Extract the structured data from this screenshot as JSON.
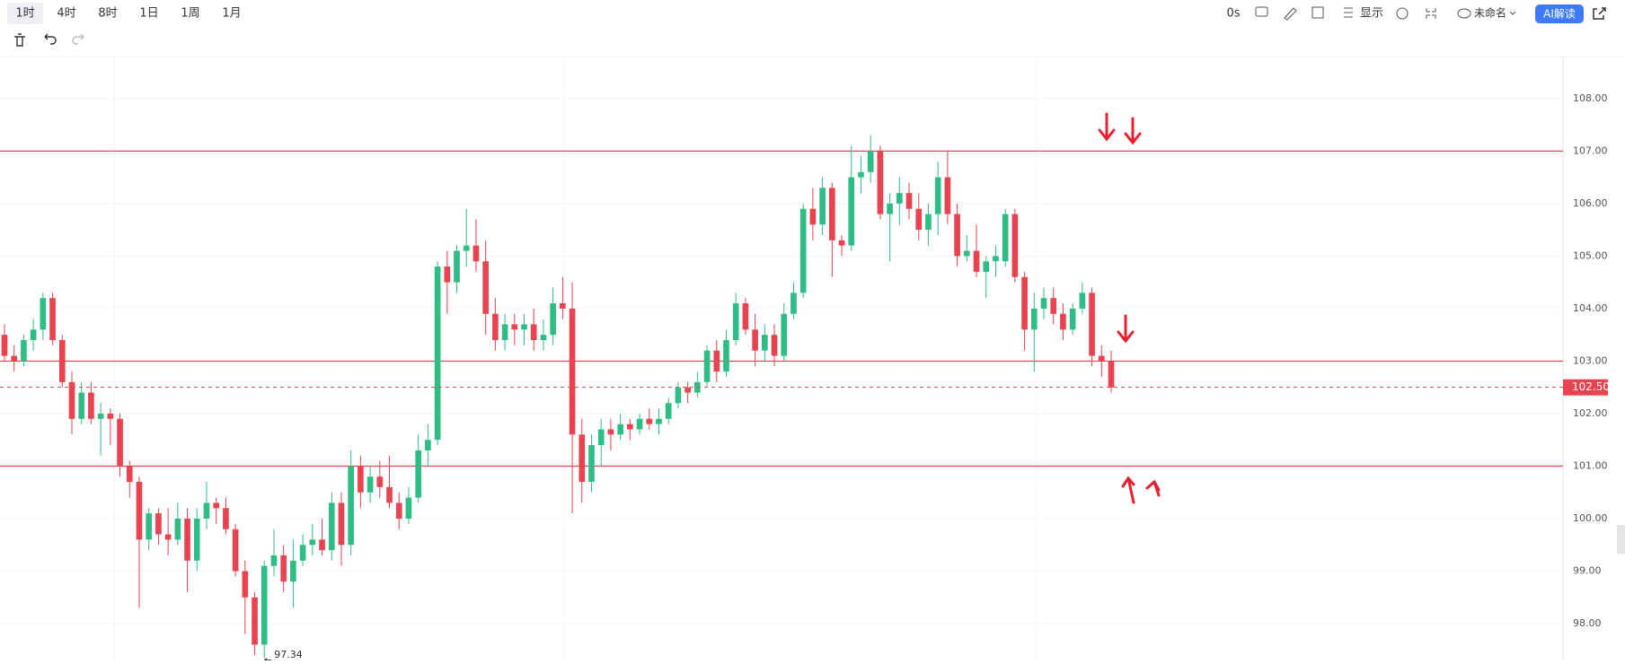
{
  "toolbar": {
    "intervals": [
      "1时",
      "4时",
      "8时",
      "1日",
      "1周",
      "1月"
    ],
    "countdown": "0s",
    "display": "显示",
    "layout_name": "未命名",
    "ai_button": "AI解读"
  },
  "chart_data": {
    "type": "candlestick",
    "up_color": "#2ebd85",
    "down_color": "#e8434f",
    "line_color": "#e8434f",
    "ylim": [
      97.3,
      108.8
    ],
    "yticks": [
      {
        "value": 98,
        "label": "98.00"
      },
      {
        "value": 99,
        "label": "99.00"
      },
      {
        "value": 100,
        "label": "100.00"
      },
      {
        "value": 101,
        "label": "101.00"
      },
      {
        "value": 102,
        "label": "102.00"
      },
      {
        "value": 103,
        "label": "103.00"
      },
      {
        "value": 104,
        "label": "104.00"
      },
      {
        "value": 105,
        "label": "105.00"
      },
      {
        "value": 106,
        "label": "106.00"
      },
      {
        "value": 107,
        "label": "107.00"
      },
      {
        "value": 108,
        "label": "108.00"
      }
    ],
    "grid": true,
    "hlines": [
      107,
      103,
      101
    ],
    "last_price": {
      "value": 102.5,
      "label": "102.50"
    },
    "low_label": {
      "value": 97.34,
      "label": "97.34"
    },
    "candles": [
      [
        103.5,
        103.7,
        103.0,
        103.1
      ],
      [
        103.1,
        103.3,
        102.8,
        103.0
      ],
      [
        103.0,
        103.5,
        102.9,
        103.4
      ],
      [
        103.4,
        103.8,
        103.2,
        103.6
      ],
      [
        103.6,
        104.3,
        103.4,
        104.2
      ],
      [
        104.2,
        104.3,
        103.3,
        103.4
      ],
      [
        103.4,
        103.5,
        102.5,
        102.6
      ],
      [
        102.6,
        102.8,
        101.6,
        101.9
      ],
      [
        101.9,
        102.6,
        101.8,
        102.4
      ],
      [
        102.4,
        102.6,
        101.8,
        101.9
      ],
      [
        101.9,
        102.2,
        101.2,
        102.0
      ],
      [
        102.0,
        102.1,
        101.4,
        101.9
      ],
      [
        101.9,
        102.0,
        100.8,
        101.0
      ],
      [
        101.0,
        101.1,
        100.4,
        100.7
      ],
      [
        100.7,
        100.8,
        98.3,
        99.6
      ],
      [
        99.6,
        100.2,
        99.4,
        100.1
      ],
      [
        100.1,
        100.2,
        99.5,
        99.7
      ],
      [
        99.7,
        100.2,
        99.3,
        99.6
      ],
      [
        99.6,
        100.3,
        99.5,
        100.0
      ],
      [
        100.0,
        100.2,
        98.6,
        99.2
      ],
      [
        99.2,
        100.2,
        99.0,
        100.0
      ],
      [
        100.0,
        100.7,
        99.8,
        100.3
      ],
      [
        100.3,
        100.4,
        99.9,
        100.2
      ],
      [
        100.2,
        100.4,
        99.7,
        99.8
      ],
      [
        99.8,
        99.9,
        98.9,
        99.0
      ],
      [
        99.0,
        99.2,
        97.8,
        98.5
      ],
      [
        98.5,
        98.6,
        97.4,
        97.6
      ],
      [
        97.6,
        99.2,
        97.34,
        99.1
      ],
      [
        99.1,
        99.8,
        98.9,
        99.3
      ],
      [
        99.3,
        99.5,
        98.6,
        98.8
      ],
      [
        98.8,
        99.6,
        98.3,
        99.2
      ],
      [
        99.2,
        99.7,
        99.1,
        99.5
      ],
      [
        99.5,
        99.9,
        99.3,
        99.6
      ],
      [
        99.6,
        100.0,
        99.3,
        99.4
      ],
      [
        99.4,
        100.5,
        99.2,
        100.3
      ],
      [
        100.3,
        100.5,
        99.1,
        99.5
      ],
      [
        99.5,
        101.3,
        99.3,
        101.0
      ],
      [
        101.0,
        101.2,
        100.2,
        100.5
      ],
      [
        100.5,
        101.0,
        100.3,
        100.8
      ],
      [
        100.8,
        101.1,
        100.4,
        100.6
      ],
      [
        100.6,
        101.2,
        100.2,
        100.3
      ],
      [
        100.3,
        100.5,
        99.8,
        100.0
      ],
      [
        100.0,
        100.6,
        99.9,
        100.4
      ],
      [
        100.4,
        101.6,
        100.3,
        101.3
      ],
      [
        101.3,
        101.8,
        101.0,
        101.5
      ],
      [
        101.5,
        104.9,
        101.4,
        104.8
      ],
      [
        104.8,
        105.1,
        103.9,
        104.5
      ],
      [
        104.5,
        105.2,
        104.3,
        105.1
      ],
      [
        105.1,
        105.9,
        104.8,
        105.2
      ],
      [
        105.2,
        105.7,
        104.7,
        104.9
      ],
      [
        104.9,
        105.3,
        103.5,
        103.9
      ],
      [
        103.9,
        104.2,
        103.2,
        103.4
      ],
      [
        103.4,
        103.9,
        103.2,
        103.7
      ],
      [
        103.7,
        103.9,
        103.3,
        103.6
      ],
      [
        103.6,
        103.9,
        103.3,
        103.7
      ],
      [
        103.7,
        104.0,
        103.2,
        103.4
      ],
      [
        103.4,
        103.8,
        103.2,
        103.5
      ],
      [
        103.5,
        104.4,
        103.3,
        104.1
      ],
      [
        104.1,
        104.6,
        103.8,
        104.0
      ],
      [
        104.0,
        104.5,
        100.1,
        101.6
      ],
      [
        101.6,
        101.9,
        100.3,
        100.7
      ],
      [
        100.7,
        101.6,
        100.5,
        101.4
      ],
      [
        101.4,
        101.9,
        101.0,
        101.7
      ],
      [
        101.7,
        101.9,
        101.3,
        101.6
      ],
      [
        101.6,
        102.0,
        101.5,
        101.8
      ],
      [
        101.8,
        101.9,
        101.5,
        101.7
      ],
      [
        101.7,
        102.0,
        101.6,
        101.9
      ],
      [
        101.9,
        102.1,
        101.7,
        101.8
      ],
      [
        101.8,
        102.1,
        101.6,
        101.9
      ],
      [
        101.9,
        102.3,
        101.8,
        102.2
      ],
      [
        102.2,
        102.6,
        102.1,
        102.5
      ],
      [
        102.5,
        102.6,
        102.2,
        102.4
      ],
      [
        102.4,
        102.8,
        102.3,
        102.6
      ],
      [
        102.6,
        103.3,
        102.5,
        103.2
      ],
      [
        103.2,
        103.4,
        102.6,
        102.8
      ],
      [
        102.8,
        103.6,
        102.7,
        103.4
      ],
      [
        103.4,
        104.3,
        103.3,
        104.1
      ],
      [
        104.1,
        104.2,
        103.5,
        103.6
      ],
      [
        103.6,
        103.9,
        102.9,
        103.2
      ],
      [
        103.2,
        103.7,
        103.0,
        103.5
      ],
      [
        103.5,
        103.7,
        102.9,
        103.1
      ],
      [
        103.1,
        104.1,
        103.0,
        103.9
      ],
      [
        103.9,
        104.5,
        103.8,
        104.3
      ],
      [
        104.3,
        106.0,
        104.2,
        105.9
      ],
      [
        105.9,
        106.3,
        105.3,
        105.6
      ],
      [
        105.6,
        106.5,
        105.4,
        106.3
      ],
      [
        106.3,
        106.4,
        104.6,
        105.3
      ],
      [
        105.3,
        105.4,
        105.0,
        105.2
      ],
      [
        105.2,
        107.1,
        105.1,
        106.5
      ],
      [
        106.5,
        106.9,
        106.2,
        106.6
      ],
      [
        106.6,
        107.3,
        106.4,
        107.0
      ],
      [
        107.0,
        107.1,
        105.7,
        105.8
      ],
      [
        105.8,
        106.2,
        104.9,
        106.0
      ],
      [
        106.0,
        106.5,
        105.6,
        106.2
      ],
      [
        106.2,
        106.4,
        105.7,
        105.9
      ],
      [
        105.9,
        106.2,
        105.3,
        105.5
      ],
      [
        105.5,
        106.0,
        105.2,
        105.8
      ],
      [
        105.8,
        106.8,
        105.4,
        106.5
      ],
      [
        106.5,
        107.0,
        105.6,
        105.8
      ],
      [
        105.8,
        106.0,
        104.8,
        105.0
      ],
      [
        105.0,
        105.4,
        104.9,
        105.1
      ],
      [
        105.1,
        105.6,
        104.6,
        104.7
      ],
      [
        104.7,
        105.0,
        104.2,
        104.9
      ],
      [
        104.9,
        105.2,
        104.6,
        105.0
      ],
      [
        104.9,
        105.9,
        104.8,
        105.8
      ],
      [
        105.8,
        105.9,
        104.5,
        104.6
      ],
      [
        104.6,
        104.7,
        103.2,
        103.6
      ],
      [
        103.6,
        104.3,
        102.8,
        104.0
      ],
      [
        104.0,
        104.4,
        103.8,
        104.2
      ],
      [
        104.2,
        104.4,
        103.7,
        103.9
      ],
      [
        103.9,
        104.1,
        103.4,
        103.6
      ],
      [
        103.6,
        104.1,
        103.5,
        104.0
      ],
      [
        104.0,
        104.5,
        103.9,
        104.3
      ],
      [
        104.3,
        104.4,
        102.9,
        103.1
      ],
      [
        103.1,
        103.3,
        102.7,
        103.0
      ],
      [
        103.0,
        103.2,
        102.4,
        102.5
      ]
    ]
  }
}
